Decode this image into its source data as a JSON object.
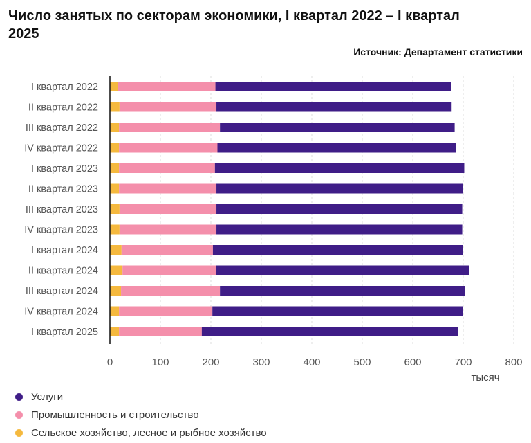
{
  "chart_data": {
    "type": "bar",
    "orientation": "horizontal",
    "stacked": true,
    "title": "Число занятых по секторам экономики, I квартал 2022 – I квартал 2025",
    "subtitle": "Источник: Департамент статистики",
    "xlabel": "тысяч",
    "ylabel": "",
    "xlim": [
      0,
      800
    ],
    "xticks": [
      "0",
      "100",
      "200",
      "300",
      "400",
      "500",
      "600",
      "700",
      "800"
    ],
    "grid": "vertical",
    "legend_position": "bottom-left",
    "categories": [
      "I квартал 2022",
      "II квартал 2022",
      "III квартал 2022",
      "IV квартал 2022",
      "I квартал 2023",
      "II квартал 2023",
      "III квартал 2023",
      "IV квартал 2023",
      "I квартал 2024",
      "II квартал 2024",
      "III квартал 2024",
      "IV квартал 2024",
      "I квартал 2025"
    ],
    "series": [
      {
        "name": "Сельское хозяйство, лесное и рыбное хозяйство",
        "color": "#f5b93e",
        "values": [
          16,
          19,
          18,
          18,
          18,
          18,
          19,
          19,
          23,
          25,
          22,
          18,
          18
        ]
      },
      {
        "name": "Промышленность и строительство",
        "color": "#f48fab",
        "values": [
          193,
          192,
          200,
          195,
          190,
          193,
          192,
          192,
          181,
          185,
          196,
          185,
          164
        ]
      },
      {
        "name": "Услуги",
        "color": "#3f1d87",
        "values": [
          467,
          466,
          465,
          472,
          494,
          488,
          487,
          487,
          496,
          502,
          485,
          497,
          508
        ]
      }
    ],
    "legend_order": [
      "Услуги",
      "Промышленность и строительство",
      "Сельское хозяйство, лесное и рыбное хозяйство"
    ]
  }
}
